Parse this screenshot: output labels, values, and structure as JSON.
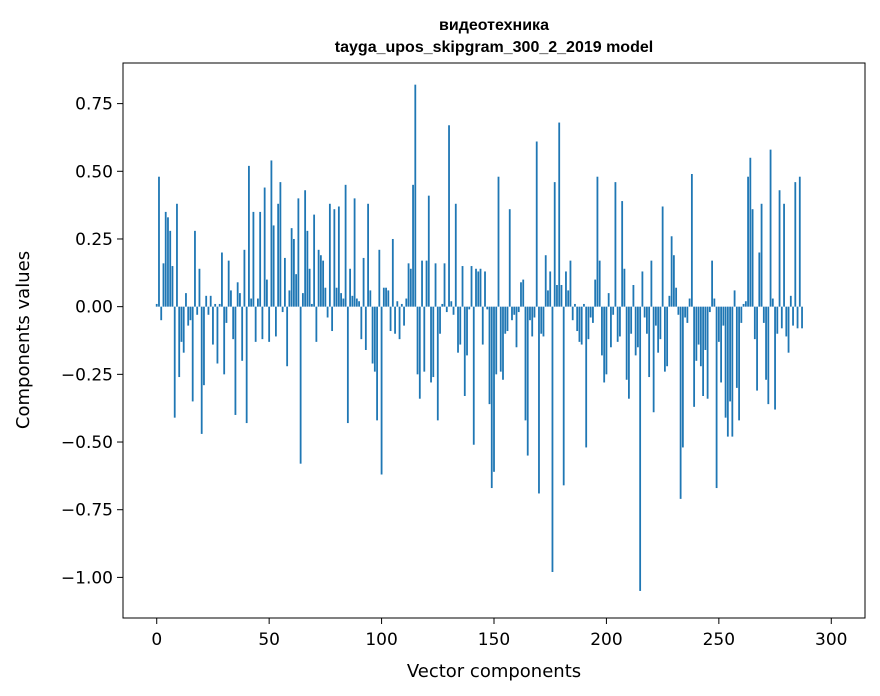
{
  "chart_data": {
    "type": "bar",
    "title": "видеотехника",
    "subtitle": "tayga_upos_skipgram_300_2_2019 model",
    "xlabel": "Vector components",
    "ylabel": "Components values",
    "xlim": [
      -15,
      315
    ],
    "ylim": [
      -1.15,
      0.9
    ],
    "xticks": [
      0,
      50,
      100,
      150,
      200,
      250,
      300
    ],
    "xtick_labels": [
      "0",
      "50",
      "100",
      "150",
      "200",
      "250",
      "300"
    ],
    "yticks": [
      0.75,
      0.5,
      0.25,
      0.0,
      -0.25,
      -0.5,
      -0.75,
      -1.0
    ],
    "ytick_labels": [
      "0.75",
      "0.50",
      "0.25",
      "0.00",
      "−0.25",
      "−0.50",
      "−0.75",
      "−1.00"
    ],
    "grid": false,
    "bar_color": "#1f77b4",
    "x_start": 0,
    "values": [
      0.01,
      0.48,
      -0.05,
      0.16,
      0.35,
      0.33,
      0.28,
      0.15,
      -0.41,
      0.38,
      -0.26,
      -0.13,
      -0.17,
      0.05,
      -0.07,
      -0.05,
      -0.35,
      0.28,
      -0.03,
      0.14,
      -0.47,
      -0.29,
      0.04,
      -0.03,
      0.04,
      -0.14,
      0.01,
      -0.21,
      0.01,
      0.2,
      -0.25,
      -0.06,
      0.17,
      0.06,
      -0.12,
      -0.4,
      0.09,
      0.05,
      -0.2,
      0.21,
      -0.43,
      0.52,
      0.03,
      0.35,
      -0.13,
      0.03,
      0.35,
      -0.12,
      0.44,
      0.1,
      -0.13,
      0.54,
      0.3,
      -0.11,
      0.38,
      0.46,
      -0.02,
      0.18,
      -0.22,
      0.06,
      0.29,
      0.25,
      0.12,
      0.4,
      -0.58,
      0.05,
      0.43,
      0.28,
      0.14,
      0.01,
      0.34,
      -0.13,
      0.21,
      0.19,
      0.17,
      0.07,
      -0.04,
      0.38,
      -0.09,
      0.36,
      0.07,
      0.37,
      0.05,
      0.03,
      0.45,
      -0.43,
      0.14,
      0.04,
      0.4,
      0.03,
      0.02,
      -0.12,
      0.18,
      -0.16,
      0.38,
      0.06,
      -0.21,
      -0.24,
      -0.42,
      0.21,
      -0.62,
      0.07,
      0.07,
      0.06,
      -0.09,
      0.25,
      -0.1,
      0.02,
      -0.12,
      0.01,
      -0.07,
      0.03,
      0.16,
      0.14,
      0.45,
      0.82,
      -0.25,
      -0.34,
      0.17,
      -0.24,
      0.17,
      0.41,
      -0.28,
      -0.26,
      0.16,
      -0.42,
      -0.1,
      0.01,
      0.16,
      -0.02,
      0.67,
      0.02,
      -0.03,
      0.38,
      -0.17,
      -0.14,
      0.15,
      -0.33,
      -0.18,
      -0.01,
      0.15,
      -0.51,
      0.14,
      0.13,
      0.14,
      -0.14,
      0.13,
      -0.01,
      -0.36,
      -0.67,
      -0.61,
      -0.25,
      0.48,
      -0.24,
      -0.27,
      -0.1,
      -0.09,
      0.36,
      -0.05,
      -0.03,
      -0.15,
      -0.02,
      0.09,
      0.1,
      -0.42,
      -0.55,
      -0.05,
      -0.11,
      -0.04,
      0.61,
      -0.69,
      -0.1,
      -0.11,
      0.19,
      0.06,
      0.13,
      -0.98,
      0.46,
      0.08,
      0.68,
      0.08,
      -0.66,
      0.13,
      0.06,
      0.17,
      -0.05,
      0.01,
      -0.09,
      -0.13,
      -0.14,
      0.01,
      -0.52,
      -0.12,
      -0.04,
      -0.06,
      0.1,
      0.48,
      0.17,
      -0.18,
      -0.28,
      -0.25,
      0.05,
      -0.15,
      -0.03,
      0.46,
      -0.13,
      -0.11,
      0.39,
      0.14,
      -0.27,
      -0.34,
      -0.1,
      0.08,
      -0.18,
      -0.15,
      -1.05,
      0.13,
      -0.04,
      -0.1,
      -0.26,
      0.17,
      -0.39,
      -0.07,
      -0.17,
      -0.12,
      0.37,
      -0.24,
      -0.22,
      0.04,
      0.26,
      0.19,
      0.07,
      -0.03,
      -0.71,
      -0.52,
      -0.04,
      -0.06,
      0.03,
      0.49,
      -0.37,
      -0.2,
      -0.14,
      -0.22,
      -0.33,
      -0.16,
      -0.34,
      -0.02,
      0.17,
      0.03,
      -0.67,
      -0.13,
      -0.28,
      -0.07,
      -0.41,
      -0.48,
      -0.35,
      -0.48,
      0.06,
      -0.3,
      -0.42,
      -0.06,
      0.01,
      0.02,
      0.48,
      0.55,
      0.36,
      -0.12,
      -0.31,
      0.2,
      0.38,
      -0.06,
      -0.27,
      -0.36,
      0.58,
      0.03,
      -0.38,
      -0.1,
      0.43,
      -0.08,
      0.38,
      -0.11,
      -0.17,
      0.04,
      -0.07,
      0.46,
      -0.08,
      0.48,
      -0.08
    ]
  }
}
